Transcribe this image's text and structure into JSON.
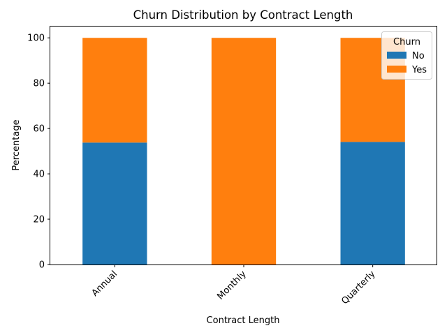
{
  "chart_data": {
    "type": "bar",
    "stacked": true,
    "title": "Churn Distribution by Contract Length",
    "xlabel": "Contract Length",
    "ylabel": "Percentage",
    "categories": [
      "Annual",
      "Monthly",
      "Quarterly"
    ],
    "series": [
      {
        "name": "No",
        "values": [
          53.8,
          0,
          54.1
        ],
        "color": "#1f77b4"
      },
      {
        "name": "Yes",
        "values": [
          46.2,
          100,
          45.9
        ],
        "color": "#ff7f0e"
      }
    ],
    "ylim": [
      0,
      105
    ],
    "yticks": [
      0,
      20,
      40,
      60,
      80,
      100
    ],
    "grid": false,
    "legend": {
      "title": "Churn",
      "position": "top-right"
    }
  }
}
